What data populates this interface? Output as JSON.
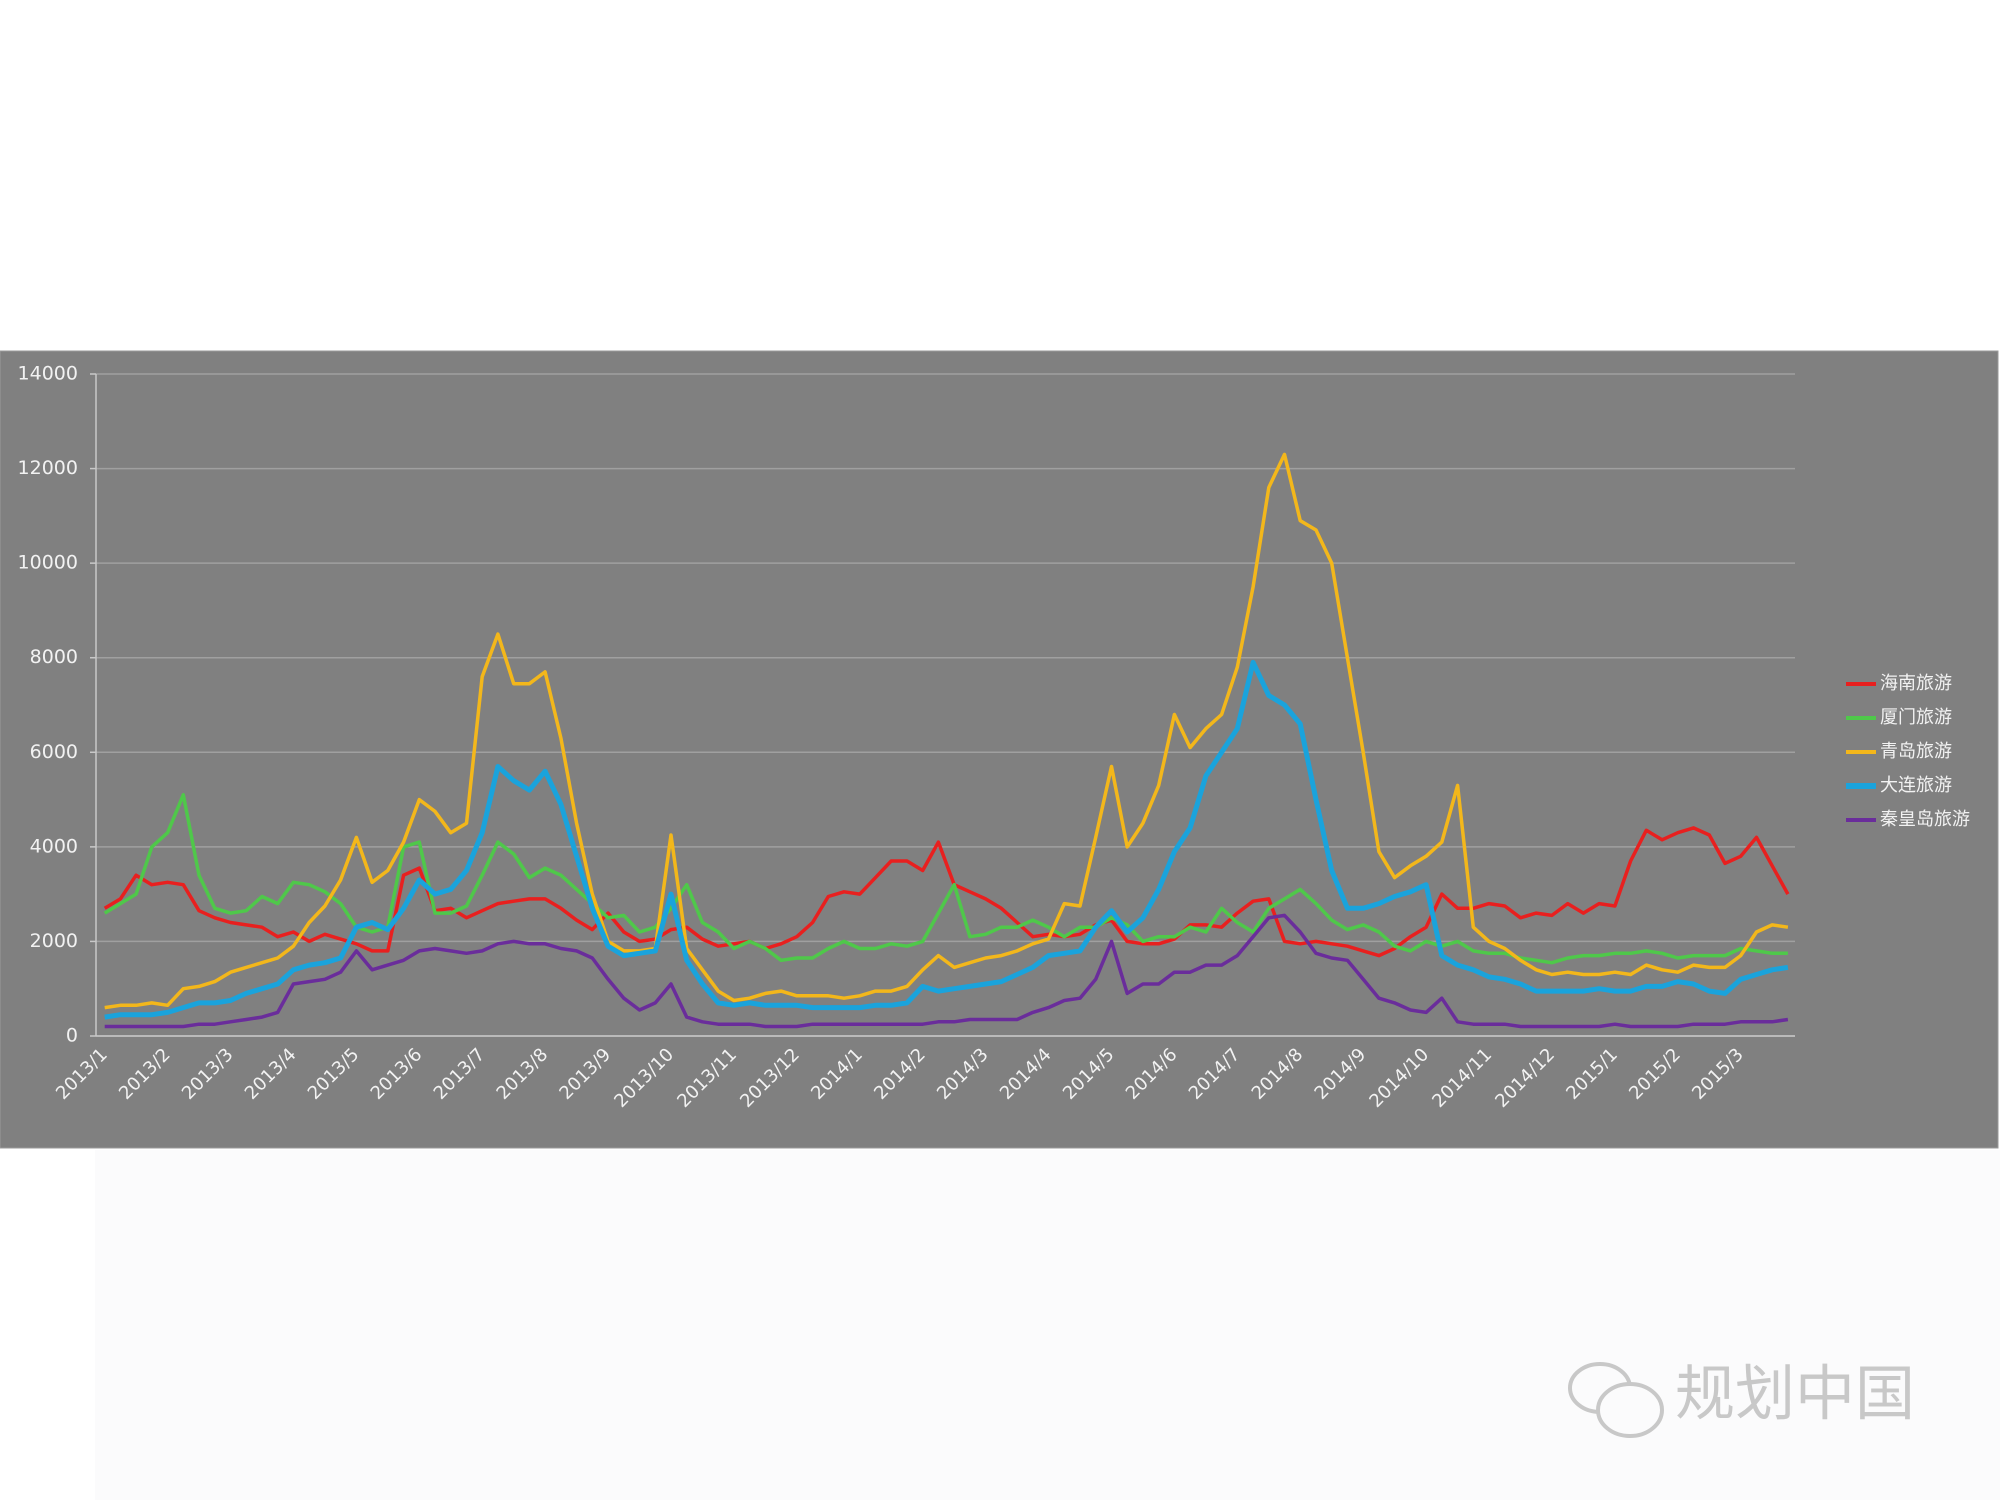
{
  "chart_data": {
    "type": "line",
    "categories": [
      "2013/1",
      null,
      null,
      null,
      "2013/2",
      null,
      null,
      null,
      "2013/3",
      null,
      null,
      null,
      "2013/4",
      null,
      null,
      null,
      "2013/5",
      null,
      null,
      null,
      "2013/6",
      null,
      null,
      null,
      "2013/7",
      null,
      null,
      null,
      "2013/8",
      null,
      null,
      null,
      "2013/9",
      null,
      null,
      null,
      "2013/10",
      null,
      null,
      null,
      "2013/11",
      null,
      null,
      null,
      "2013/12",
      null,
      null,
      null,
      "2014/1",
      null,
      null,
      null,
      "2014/2",
      null,
      null,
      null,
      "2014/3",
      null,
      null,
      null,
      "2014/4",
      null,
      null,
      null,
      "2014/5",
      null,
      null,
      null,
      "2014/6",
      null,
      null,
      null,
      "2014/7",
      null,
      null,
      null,
      "2014/8",
      null,
      null,
      null,
      "2014/9",
      null,
      null,
      null,
      "2014/10",
      null,
      null,
      null,
      "2014/11",
      null,
      null,
      null,
      "2014/12",
      null,
      null,
      null,
      "2015/1",
      null,
      null,
      null,
      "2015/2",
      null,
      null,
      null,
      "2015/3",
      null,
      null,
      null
    ],
    "series": [
      {
        "name": "海南旅游",
        "color": "#e8201f",
        "values": [
          2700,
          2900,
          3400,
          3200,
          3250,
          3200,
          2650,
          2500,
          2400,
          2350,
          2300,
          2100,
          2200,
          2000,
          2150,
          2050,
          1950,
          1800,
          1800,
          3400,
          3550,
          2650,
          2700,
          2500,
          2650,
          2800,
          2850,
          2900,
          2900,
          2700,
          2450,
          2250,
          2600,
          2200,
          2000,
          2050,
          2250,
          2300,
          2050,
          1900,
          1950,
          2000,
          1850,
          1950,
          2100,
          2400,
          2950,
          3050,
          3000,
          3350,
          3700,
          3700,
          3500,
          4100,
          3200,
          3050,
          2900,
          2700,
          2400,
          2100,
          2150,
          2100,
          2150,
          2350,
          2450,
          2000,
          1950,
          1950,
          2050,
          2350,
          2350,
          2300,
          2600,
          2850,
          2900,
          2000,
          1950,
          2000,
          1950,
          1900,
          1800,
          1700,
          1850,
          2100,
          2300,
          3000,
          2700,
          2700,
          2800,
          2750,
          2500,
          2600,
          2550,
          2800,
          2600,
          2800,
          2750,
          3700,
          4350,
          4150,
          4300,
          4400,
          4250,
          3650,
          3800,
          4200,
          3600,
          3000
        ]
      },
      {
        "name": "厦门旅游",
        "color": "#4fc84a",
        "values": [
          2600,
          2800,
          3000,
          4000,
          4300,
          5100,
          3400,
          2700,
          2600,
          2650,
          2950,
          2800,
          3250,
          3200,
          3050,
          2800,
          2300,
          2200,
          2300,
          4000,
          4100,
          2600,
          2600,
          2750,
          3400,
          4100,
          3850,
          3350,
          3550,
          3400,
          3100,
          2800,
          2500,
          2550,
          2200,
          2300,
          2700,
          3200,
          2400,
          2200,
          1850,
          2000,
          1850,
          1600,
          1650,
          1650,
          1850,
          2000,
          1850,
          1850,
          1950,
          1900,
          2000,
          2600,
          3200,
          2100,
          2150,
          2300,
          2300,
          2450,
          2300,
          2100,
          2300,
          2300,
          2500,
          2350,
          2000,
          2100,
          2100,
          2300,
          2200,
          2700,
          2400,
          2200,
          2700,
          2900,
          3100,
          2800,
          2450,
          2250,
          2350,
          2200,
          1900,
          1800,
          2000,
          1900,
          2000,
          1800,
          1750,
          1750,
          1650,
          1600,
          1550,
          1650,
          1700,
          1700,
          1750,
          1750,
          1800,
          1750,
          1650,
          1700,
          1700,
          1700,
          1850,
          1800,
          1750,
          1750
        ]
      },
      {
        "name": "青岛旅游",
        "color": "#f3b71b",
        "values": [
          600,
          650,
          650,
          700,
          650,
          1000,
          1050,
          1150,
          1350,
          1450,
          1550,
          1650,
          1900,
          2400,
          2750,
          3300,
          4200,
          3250,
          3500,
          4100,
          5000,
          4750,
          4300,
          4500,
          7600,
          8500,
          7450,
          7450,
          7700,
          6300,
          4500,
          3000,
          2000,
          1800,
          1800,
          1850,
          4250,
          1850,
          1400,
          950,
          750,
          800,
          900,
          950,
          850,
          850,
          850,
          800,
          850,
          950,
          950,
          1050,
          1400,
          1700,
          1450,
          1550,
          1650,
          1700,
          1800,
          1950,
          2050,
          2800,
          2750,
          4200,
          5700,
          4000,
          4500,
          5300,
          6800,
          6100,
          6500,
          6800,
          7800,
          9500,
          11600,
          12300,
          10900,
          10700,
          10000,
          8000,
          6000,
          3900,
          3350,
          3600,
          3800,
          4100,
          5300,
          2300,
          2000,
          1850,
          1600,
          1400,
          1300,
          1350,
          1300,
          1300,
          1350,
          1300,
          1500,
          1400,
          1350,
          1500,
          1450,
          1450,
          1700,
          2200,
          2350,
          2300
        ]
      },
      {
        "name": "大连旅游",
        "color": "#1aa3dc",
        "values": [
          400,
          450,
          450,
          450,
          500,
          600,
          700,
          700,
          750,
          900,
          1000,
          1100,
          1400,
          1500,
          1550,
          1650,
          2300,
          2400,
          2250,
          2700,
          3300,
          3000,
          3100,
          3500,
          4300,
          5700,
          5400,
          5200,
          5600,
          4900,
          3800,
          2700,
          1900,
          1700,
          1750,
          1800,
          3000,
          1600,
          1100,
          700,
          650,
          700,
          650,
          650,
          650,
          600,
          600,
          600,
          600,
          650,
          650,
          700,
          1050,
          950,
          1000,
          1050,
          1100,
          1150,
          1300,
          1450,
          1700,
          1750,
          1800,
          2300,
          2650,
          2200,
          2500,
          3100,
          3900,
          4400,
          5500,
          6000,
          6500,
          7900,
          7200,
          7000,
          6600,
          5000,
          3500,
          2700,
          2700,
          2800,
          2950,
          3050,
          3200,
          1700,
          1500,
          1400,
          1250,
          1200,
          1100,
          950,
          950,
          950,
          950,
          1000,
          950,
          950,
          1050,
          1050,
          1150,
          1100,
          950,
          900,
          1200,
          1300,
          1400,
          1450
        ]
      },
      {
        "name": "秦皇岛旅游",
        "color": "#6a2d9b",
        "values": [
          200,
          200,
          200,
          200,
          200,
          200,
          250,
          250,
          300,
          350,
          400,
          500,
          1100,
          1150,
          1200,
          1350,
          1800,
          1400,
          1500,
          1600,
          1800,
          1850,
          1800,
          1750,
          1800,
          1950,
          2000,
          1950,
          1950,
          1850,
          1800,
          1650,
          1200,
          800,
          550,
          700,
          1100,
          400,
          300,
          250,
          250,
          250,
          200,
          200,
          200,
          250,
          250,
          250,
          250,
          250,
          250,
          250,
          250,
          300,
          300,
          350,
          350,
          350,
          350,
          500,
          600,
          750,
          800,
          1200,
          2000,
          900,
          1100,
          1100,
          1350,
          1350,
          1500,
          1500,
          1700,
          2100,
          2500,
          2550,
          2200,
          1750,
          1650,
          1600,
          1200,
          800,
          700,
          550,
          500,
          800,
          300,
          250,
          250,
          250,
          200,
          200,
          200,
          200,
          200,
          200,
          250,
          200,
          200,
          200,
          200,
          250,
          250,
          250,
          300,
          300,
          300,
          350
        ]
      }
    ],
    "ylim": [
      0,
      14000
    ],
    "yticks": [
      0,
      2000,
      4000,
      6000,
      8000,
      10000,
      12000,
      14000
    ],
    "grid": true,
    "legend": "right"
  },
  "watermark": "规划中国"
}
